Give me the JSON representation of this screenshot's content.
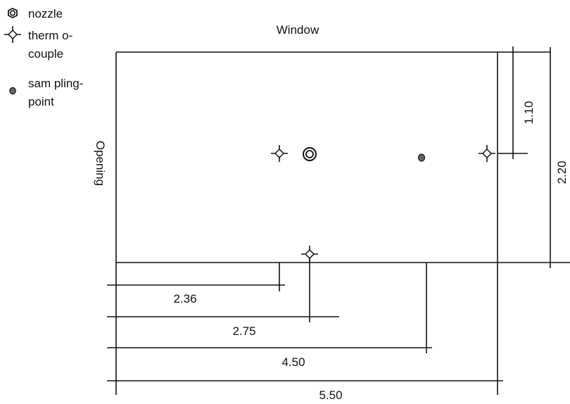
{
  "legend": {
    "nozzle": "nozzle",
    "thermocouple_line1": "therm o-",
    "thermocouple_line2": "couple",
    "sampling_line1": "sam pling-",
    "sampling_line2": "point"
  },
  "labels": {
    "window": "Window",
    "opening": "Opening"
  },
  "dimensions": {
    "d_110": "1.10",
    "d_220": "2.20",
    "d_236": "2.36",
    "d_275": "2.75",
    "d_450": "4.50",
    "d_550": "5.50"
  },
  "icons": {
    "nozzle": "nozzle-icon",
    "thermocouple": "thermocouple-icon",
    "sampling_point": "sampling-point-icon"
  }
}
